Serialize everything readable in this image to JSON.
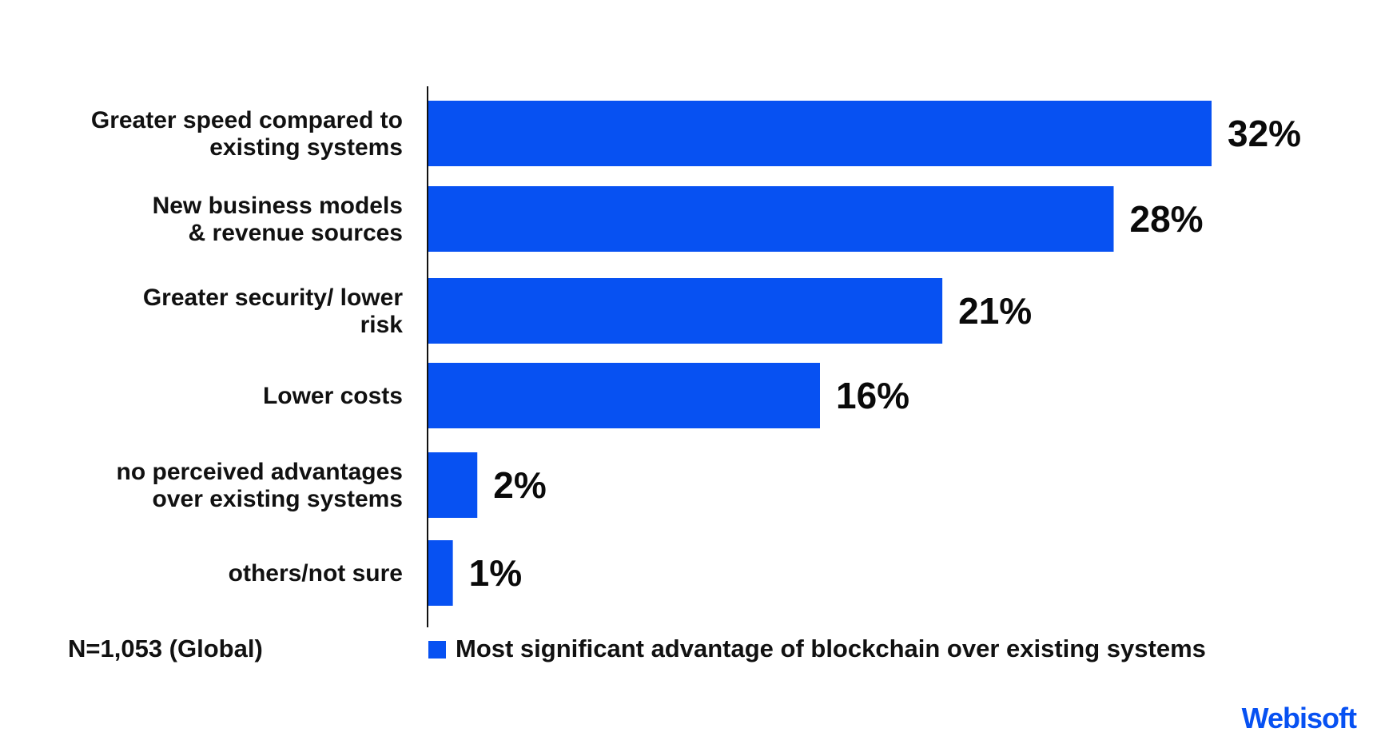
{
  "chart_data": {
    "type": "bar",
    "orientation": "horizontal",
    "categories": [
      [
        "Greater speed compared to",
        "existing systems"
      ],
      [
        "New business models",
        "& revenue sources"
      ],
      [
        "Greater security/ lower",
        "risk"
      ],
      [
        "Lower costs"
      ],
      [
        "no perceived advantages",
        "over existing systems"
      ],
      [
        "others/not sure"
      ]
    ],
    "series": [
      {
        "name": "Most significant advantage of blockchain over existing systems",
        "values": [
          32,
          28,
          21,
          16,
          2,
          1
        ],
        "value_labels": [
          "32%",
          "28%",
          "21%",
          "16%",
          "2%",
          "1%"
        ],
        "color": "#0751f2"
      }
    ],
    "xlim": [
      0,
      32
    ],
    "grid": false,
    "legend_position": "bottom"
  },
  "footnote": "N=1,053 (Global)",
  "brand": "Webisoft",
  "colors": {
    "bar": "#0751f2",
    "brand": "#0751f2",
    "axis": "#111111"
  }
}
